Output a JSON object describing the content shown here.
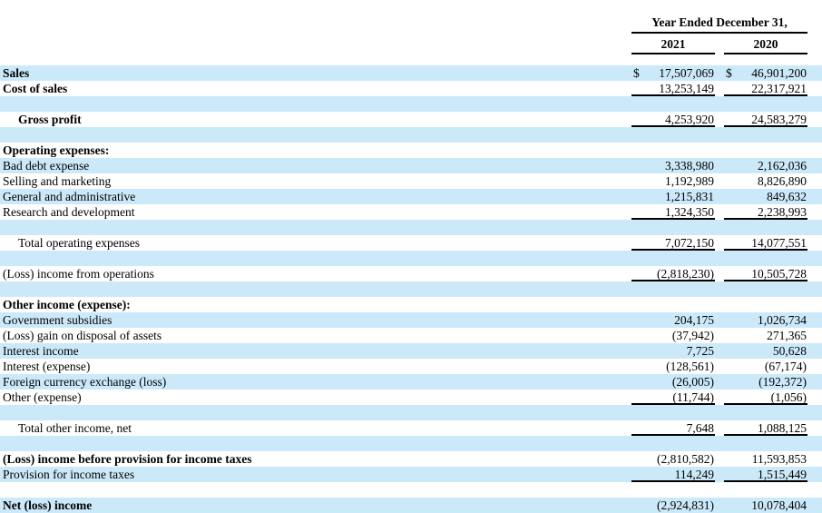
{
  "currency_symbol": "$",
  "colors": {
    "band": "#cce9fa",
    "rule": "#000000",
    "text": "#000000"
  },
  "header": {
    "period_label": "Year Ended December 31,",
    "col_2021": "2021",
    "col_2020": "2020"
  },
  "rows": [
    {
      "label": "Sales",
      "bold": true,
      "shaded": true,
      "dollar": true,
      "v2021": "17,507,069",
      "v2020": "46,901,200"
    },
    {
      "label": "Cost of sales",
      "bold": true,
      "underline": true,
      "v2021": "13,253,149",
      "v2020": "22,317,921"
    },
    {
      "spacer": true,
      "shaded": true
    },
    {
      "label": "Gross profit",
      "bold": true,
      "indent": true,
      "underline": true,
      "v2021": "4,253,920",
      "v2020": "24,583,279"
    },
    {
      "spacer": true,
      "shaded": true
    },
    {
      "label": "Operating expenses:",
      "bold": true
    },
    {
      "label": "Bad debt expense",
      "shaded": true,
      "v2021": "3,338,980",
      "v2020": "2,162,036"
    },
    {
      "label": "Selling and marketing",
      "v2021": "1,192,989",
      "v2020": "8,826,890"
    },
    {
      "label": "General and administrative",
      "shaded": true,
      "v2021": "1,215,831",
      "v2020": "849,632"
    },
    {
      "label": "Research and development",
      "underline": true,
      "v2021": "1,324,350",
      "v2020": "2,238,993"
    },
    {
      "spacer": true,
      "shaded": true
    },
    {
      "label": "Total operating expenses",
      "indent": true,
      "underline": true,
      "v2021": "7,072,150",
      "v2020": "14,077,551"
    },
    {
      "spacer": true,
      "shaded": true
    },
    {
      "label": "(Loss) income from operations",
      "underline": true,
      "v2021": "(2,818,230)",
      "v2020": "10,505,728"
    },
    {
      "spacer": true,
      "shaded": true
    },
    {
      "label": "Other income (expense):",
      "bold": true
    },
    {
      "label": "Government subsidies",
      "shaded": true,
      "v2021": "204,175",
      "v2020": "1,026,734"
    },
    {
      "label": "(Loss) gain on disposal of assets",
      "v2021": "(37,942)",
      "v2020": "271,365"
    },
    {
      "label": "Interest income",
      "shaded": true,
      "v2021": "7,725",
      "v2020": "50,628"
    },
    {
      "label": "Interest (expense)",
      "v2021": "(128,561)",
      "v2020": "(67,174)"
    },
    {
      "label": "Foreign currency exchange (loss)",
      "shaded": true,
      "v2021": "(26,005)",
      "v2020": "(192,372)"
    },
    {
      "label": "Other (expense)",
      "underline": true,
      "v2021": "(11,744)",
      "v2020": "(1,056)"
    },
    {
      "spacer": true,
      "shaded": true
    },
    {
      "label": "Total other income, net",
      "indent": true,
      "underline": true,
      "v2021": "7,648",
      "v2020": "1,088,125"
    },
    {
      "spacer": true,
      "shaded": true
    },
    {
      "label": "(Loss) income before provision for income taxes",
      "bold": true,
      "v2021": "(2,810,582)",
      "v2020": "11,593,853"
    },
    {
      "label": "Provision for income taxes",
      "shaded": true,
      "underline": true,
      "v2021": "114,249",
      "v2020": "1,515,449"
    },
    {
      "spacer": true
    },
    {
      "label": "Net (loss) income",
      "bold": true,
      "shaded": true,
      "v2021": "(2,924,831)",
      "v2020": "10,078,404"
    }
  ]
}
